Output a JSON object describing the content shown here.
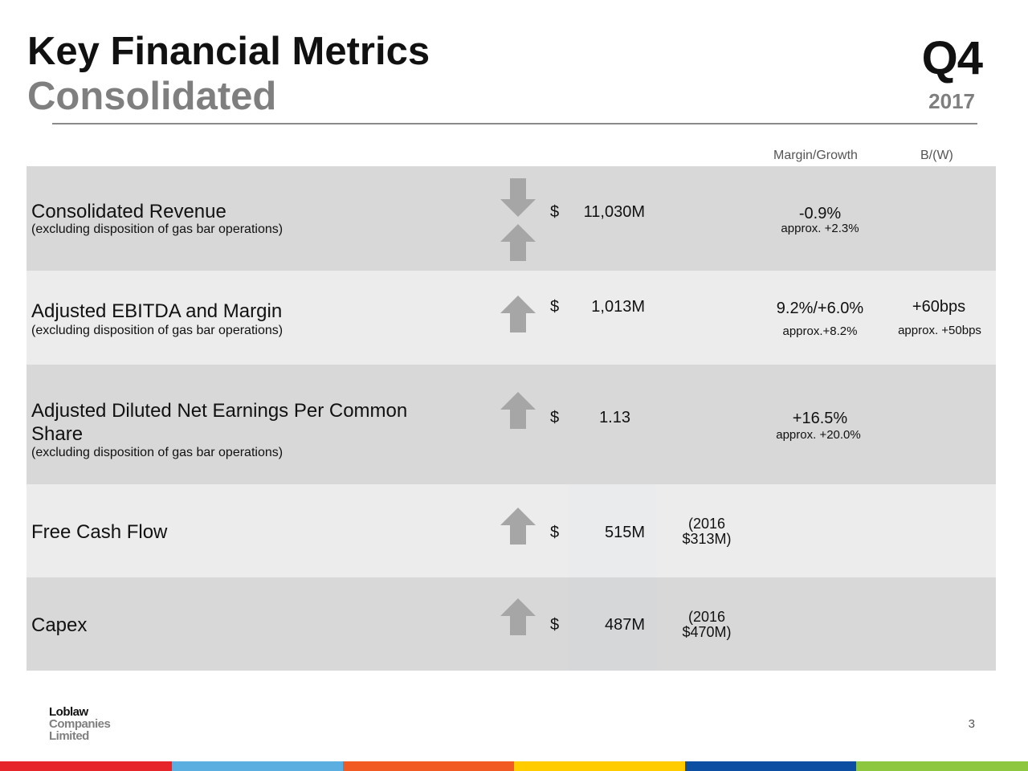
{
  "header": {
    "title": "Key Financial Metrics",
    "subtitle": "Consolidated",
    "quarter": "Q4",
    "year": "2017"
  },
  "columns": {
    "margin_growth": "Margin/Growth",
    "better_worse": "B/(W)"
  },
  "rows": [
    {
      "label": "Consolidated Revenue",
      "note": "(excluding disposition of gas bar operations)",
      "arrows": [
        "down",
        "up"
      ],
      "currency": "$",
      "amount": "11,030M",
      "metric": "-0.9%",
      "metric_approx": "approx. +2.3%"
    },
    {
      "label": "Adjusted EBITDA and Margin",
      "note": "(excluding disposition of gas bar operations)",
      "arrows": [
        "up"
      ],
      "currency": "$",
      "amount": "1,013M",
      "metric": "9.2%/+6.0%",
      "metric_approx": "approx.+8.2%",
      "bw": "+60bps",
      "bw_approx": "approx. +50bps"
    },
    {
      "label_line1": "Adjusted Diluted Net Earnings Per Common",
      "label_line2": "Share",
      "note": "(excluding disposition of gas bar operations)",
      "arrows": [
        "up"
      ],
      "currency": "$",
      "amount": "1.13",
      "metric": "+16.5%",
      "metric_approx": "approx. +20.0%"
    },
    {
      "label": "Free Cash Flow",
      "arrows": [
        "up"
      ],
      "currency": "$",
      "amount": "515M",
      "prior_line1": "(2016",
      "prior_line2": "$313M)"
    },
    {
      "label": "Capex",
      "arrows": [
        "up"
      ],
      "currency": "$",
      "amount": "487M",
      "prior_line1": "(2016",
      "prior_line2": "$470M)"
    }
  ],
  "footer": {
    "logo_line1": "Loblaw",
    "logo_line2": "Companies",
    "logo_line3": "Limited",
    "page_number": "3"
  },
  "colors": {
    "row_dark": "#d8d8d8",
    "row_light": "#ececec",
    "arrow": "#a6a6a6",
    "stripes": [
      "#e5252a",
      "#5aaee0",
      "#f15a22",
      "#ffcc00",
      "#0b4ea2",
      "#8dc63f"
    ]
  }
}
